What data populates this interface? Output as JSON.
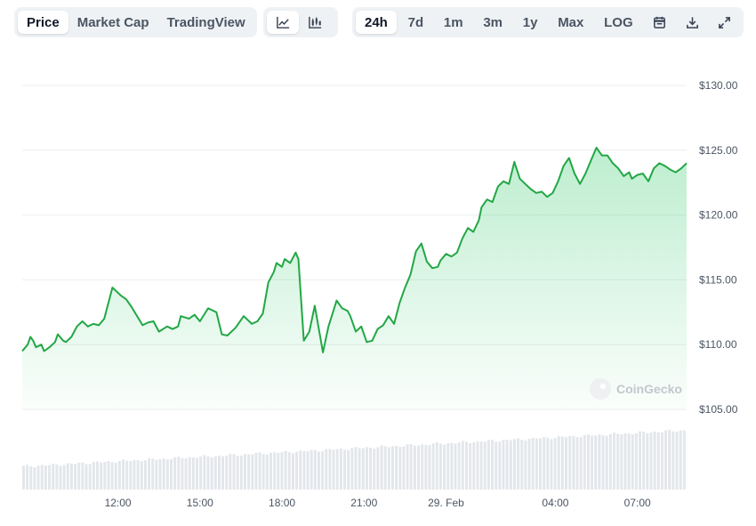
{
  "toolbar": {
    "view_tabs": [
      "Price",
      "Market Cap",
      "TradingView"
    ],
    "active_view": "Price",
    "chart_styles": [
      "line-chart-icon",
      "candlestick-chart-icon"
    ],
    "active_style": "line-chart-icon",
    "ranges": [
      "24h",
      "7d",
      "1m",
      "3m",
      "1y",
      "Max",
      "LOG"
    ],
    "active_range": "24h",
    "tools": [
      "calendar-icon",
      "download-icon",
      "expand-icon"
    ]
  },
  "watermark": "CoinGecko",
  "colors": {
    "line": "#22a745",
    "fill_top": "#22c55e",
    "grid": "#eceef1",
    "volume": "#e3e6ea",
    "active_bg": "#ffffff",
    "group_bg": "#eff2f5"
  },
  "chart_data": {
    "type": "area",
    "x_ticks": [
      "12:00",
      "15:00",
      "18:00",
      "21:00",
      "29. Feb",
      "04:00",
      "07:00"
    ],
    "x_tick_hours": [
      12,
      15,
      18,
      21,
      24,
      28,
      31
    ],
    "x_range_hours": [
      8.5,
      32.8
    ],
    "y_ticks": [
      "$130.00",
      "$125.00",
      "$120.00",
      "$115.00",
      "$110.00",
      "$105.00"
    ],
    "y_tick_values": [
      130,
      125,
      120,
      115,
      110,
      105
    ],
    "ylim": [
      105,
      130
    ],
    "grid": true,
    "series": [
      {
        "x_hours": [
          8.5,
          8.7,
          8.8,
          8.9,
          9.0,
          9.2,
          9.3,
          9.5,
          9.7,
          9.8,
          10.0,
          10.1,
          10.3,
          10.5,
          10.7,
          10.9,
          11.1,
          11.3,
          11.5,
          11.8,
          12.1,
          12.3,
          12.5,
          12.9,
          13.1,
          13.3,
          13.5,
          13.8,
          14.0,
          14.2,
          14.3,
          14.6,
          14.8,
          15.0,
          15.3,
          15.6,
          15.8,
          16.0,
          16.3,
          16.6,
          16.9,
          17.1,
          17.3,
          17.5,
          17.7,
          17.8,
          18.0,
          18.1,
          18.3,
          18.5,
          18.6,
          18.8,
          19.0,
          19.2,
          19.5,
          19.7,
          20.0,
          20.2,
          20.4,
          20.5,
          20.7,
          20.9,
          21.1,
          21.3,
          21.5,
          21.7,
          21.9,
          22.1,
          22.3,
          22.5,
          22.7,
          22.9,
          23.1,
          23.3,
          23.5,
          23.7,
          23.8,
          24.0,
          24.2,
          24.4,
          24.6,
          24.8,
          25.0,
          25.2,
          25.3,
          25.5,
          25.7,
          25.9,
          26.1,
          26.3,
          26.5,
          26.7,
          26.9,
          27.1,
          27.3,
          27.5,
          27.7,
          27.9,
          28.1,
          28.3,
          28.5,
          28.7,
          28.9,
          29.1,
          29.3,
          29.5,
          29.7,
          29.9,
          30.1,
          30.3,
          30.5,
          30.7,
          30.8,
          31.0,
          31.2,
          31.4,
          31.6,
          31.8,
          32.0,
          32.2,
          32.4,
          32.6,
          32.8
        ],
        "values": [
          109.5,
          110.0,
          110.6,
          110.3,
          109.8,
          110.0,
          109.5,
          109.8,
          110.2,
          110.8,
          110.3,
          110.2,
          110.6,
          111.4,
          111.8,
          111.4,
          111.6,
          111.5,
          112.0,
          114.4,
          113.8,
          113.5,
          112.9,
          111.5,
          111.7,
          111.8,
          111.0,
          111.4,
          111.2,
          111.4,
          112.2,
          112.0,
          112.3,
          111.8,
          112.8,
          112.5,
          110.8,
          110.7,
          111.3,
          112.2,
          111.6,
          111.8,
          112.4,
          114.8,
          115.6,
          116.3,
          116.0,
          116.6,
          116.3,
          117.1,
          116.6,
          110.3,
          111.0,
          113.0,
          109.4,
          111.4,
          113.4,
          112.8,
          112.6,
          112.2,
          111.0,
          111.4,
          110.2,
          110.3,
          111.2,
          111.5,
          112.2,
          111.6,
          113.2,
          114.4,
          115.4,
          117.2,
          117.8,
          116.4,
          115.9,
          116.0,
          116.5,
          117.0,
          116.8,
          117.1,
          118.2,
          119.0,
          118.7,
          119.6,
          120.6,
          121.2,
          121.0,
          122.2,
          122.6,
          122.4,
          124.1,
          122.8,
          122.4,
          122.0,
          121.7,
          121.8,
          121.4,
          121.7,
          122.6,
          123.8,
          124.4,
          123.2,
          122.4,
          123.2,
          124.2,
          125.2,
          124.6,
          124.6,
          124.0,
          123.6,
          123.0,
          123.3,
          122.8,
          123.1,
          123.2,
          122.6,
          123.6,
          124.0,
          123.8,
          123.5,
          123.3,
          123.6,
          124.0
        ]
      }
    ],
    "volume": {
      "note_scale": "relative",
      "start": 0.37,
      "end": 0.95
    }
  }
}
